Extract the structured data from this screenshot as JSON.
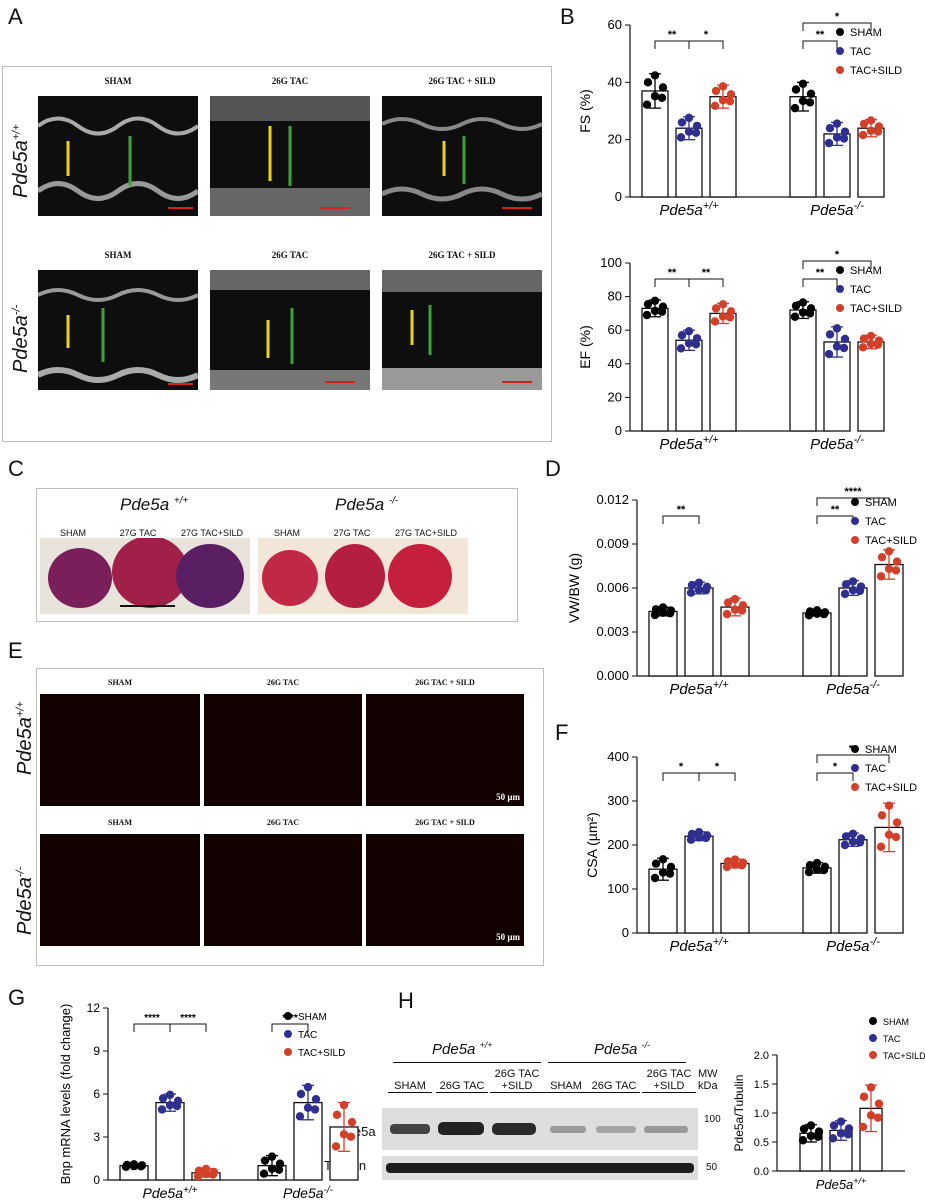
{
  "panels": {
    "A": "A",
    "B": "B",
    "C": "C",
    "D": "D",
    "E": "E",
    "F": "F",
    "G": "G",
    "H": "H"
  },
  "genotypes": {
    "wt": "Pde5a",
    "wt_sup": "+/+",
    "ko": "Pde5a",
    "ko_sup": "-/-"
  },
  "echo_headers": [
    "SHAM",
    "26G TAC",
    "26G TAC + SILD"
  ],
  "heart_headers": [
    "SHAM",
    "27G TAC",
    "27G TAC+SILD"
  ],
  "scale_bar": "50 µm",
  "legend": [
    "SHAM",
    "TAC",
    "TAC+SILD"
  ],
  "colors": {
    "sham": "#000000",
    "tac": "#2e2f8f",
    "sild": "#d2402a"
  },
  "blot": {
    "lanes": [
      "SHAM",
      "26G TAC",
      "26G TAC +SILD",
      "SHAM",
      "26G TAC",
      "26G TAC +SILD"
    ],
    "mw": "MW kDa",
    "rows": [
      "Pde5a",
      "Tubulin"
    ],
    "markers": [
      "100",
      "50"
    ]
  },
  "chart_data": [
    {
      "id": "B-FS",
      "type": "bar",
      "ylabel": "FS (%)",
      "ylim": [
        0,
        60
      ],
      "yticks": [
        "0",
        "20",
        "40",
        "60"
      ],
      "categories": [
        "Pde5a+/+",
        "Pde5a-/-"
      ],
      "series": [
        {
          "name": "SHAM",
          "values": [
            37,
            35
          ],
          "errors": [
            6,
            5
          ]
        },
        {
          "name": "TAC",
          "values": [
            24,
            22
          ],
          "errors": [
            4,
            4
          ]
        },
        {
          "name": "TAC+SILD",
          "values": [
            35,
            24
          ],
          "errors": [
            4,
            3
          ]
        }
      ],
      "significance": [
        {
          "group": 0,
          "from": 0,
          "to": 1,
          "label": "**"
        },
        {
          "group": 0,
          "from": 1,
          "to": 2,
          "label": "*"
        },
        {
          "group": 1,
          "from": 0,
          "to": 1,
          "label": "**"
        },
        {
          "group": 1,
          "from": 0,
          "to": 2,
          "label": "*"
        }
      ]
    },
    {
      "id": "B-EF",
      "type": "bar",
      "ylabel": "EF (%)",
      "ylim": [
        0,
        100
      ],
      "yticks": [
        "0",
        "20",
        "40",
        "60",
        "80",
        "100"
      ],
      "categories": [
        "Pde5a+/+",
        "Pde5a-/-"
      ],
      "series": [
        {
          "name": "SHAM",
          "values": [
            73,
            72
          ],
          "errors": [
            5,
            5
          ]
        },
        {
          "name": "TAC",
          "values": [
            54,
            53
          ],
          "errors": [
            6,
            9
          ]
        },
        {
          "name": "TAC+SILD",
          "values": [
            70,
            53
          ],
          "errors": [
            6,
            4
          ]
        }
      ],
      "significance": [
        {
          "group": 0,
          "from": 0,
          "to": 1,
          "label": "**"
        },
        {
          "group": 0,
          "from": 1,
          "to": 2,
          "label": "**"
        },
        {
          "group": 1,
          "from": 0,
          "to": 1,
          "label": "**"
        },
        {
          "group": 1,
          "from": 0,
          "to": 2,
          "label": "*"
        }
      ]
    },
    {
      "id": "D-VWBW",
      "type": "bar",
      "ylabel": "VW/BW (g)",
      "ylim": [
        0,
        0.012
      ],
      "yticks": [
        "0.000",
        "0.003",
        "0.006",
        "0.009",
        "0.012"
      ],
      "categories": [
        "Pde5a+/+",
        "Pde5a-/-"
      ],
      "series": [
        {
          "name": "SHAM",
          "values": [
            0.0044,
            0.0043
          ],
          "errors": [
            0.0003,
            0.0002
          ]
        },
        {
          "name": "TAC",
          "values": [
            0.006,
            0.006
          ],
          "errors": [
            0.0004,
            0.0005
          ]
        },
        {
          "name": "TAC+SILD",
          "values": [
            0.0047,
            0.0076
          ],
          "errors": [
            0.0006,
            0.001
          ]
        }
      ],
      "significance": [
        {
          "group": 0,
          "from": 0,
          "to": 1,
          "label": "**"
        },
        {
          "group": 1,
          "from": 0,
          "to": 1,
          "label": "**"
        },
        {
          "group": 1,
          "from": 0,
          "to": 2,
          "label": "****"
        }
      ]
    },
    {
      "id": "F-CSA",
      "type": "bar",
      "ylabel": "CSA (µm²)",
      "ylim": [
        0,
        400
      ],
      "yticks": [
        "0",
        "100",
        "200",
        "300",
        "400"
      ],
      "categories": [
        "Pde5a+/+",
        "Pde5a-/-"
      ],
      "series": [
        {
          "name": "SHAM",
          "values": [
            145,
            148
          ],
          "errors": [
            25,
            12
          ]
        },
        {
          "name": "TAC",
          "values": [
            220,
            212
          ],
          "errors": [
            10,
            15
          ]
        },
        {
          "name": "TAC+SILD",
          "values": [
            158,
            240
          ],
          "errors": [
            10,
            55
          ]
        }
      ],
      "significance": [
        {
          "group": 0,
          "from": 0,
          "to": 1,
          "label": "*"
        },
        {
          "group": 0,
          "from": 1,
          "to": 2,
          "label": "*"
        },
        {
          "group": 1,
          "from": 0,
          "to": 1,
          "label": "*"
        },
        {
          "group": 1,
          "from": 0,
          "to": 2,
          "label": "**"
        }
      ]
    },
    {
      "id": "G-Bnp",
      "type": "bar",
      "ylabel": "Bnp mRNA levels (fold change)",
      "ylim": [
        0,
        12
      ],
      "yticks": [
        "0",
        "3",
        "6",
        "9",
        "12"
      ],
      "categories": [
        "Pde5a+/+",
        "Pde5a-/-"
      ],
      "series": [
        {
          "name": "SHAM",
          "values": [
            1.0,
            1.0
          ],
          "errors": [
            0.1,
            0.7
          ]
        },
        {
          "name": "TAC",
          "values": [
            5.4,
            5.4
          ],
          "errors": [
            0.6,
            1.2
          ]
        },
        {
          "name": "TAC+SILD",
          "values": [
            0.5,
            3.7
          ],
          "errors": [
            0.3,
            1.7
          ]
        }
      ],
      "significance": [
        {
          "group": 0,
          "from": 0,
          "to": 1,
          "label": "****"
        },
        {
          "group": 0,
          "from": 1,
          "to": 2,
          "label": "****"
        },
        {
          "group": 1,
          "from": 0,
          "to": 1,
          "label": "****"
        }
      ]
    },
    {
      "id": "H-ratio",
      "type": "bar",
      "ylabel": "Pde5a/Tubulin",
      "ylim": [
        0,
        2.0
      ],
      "yticks": [
        "0.0",
        "0.5",
        "1.0",
        "1.5",
        "2.0"
      ],
      "categories": [
        "Pde5a+/+"
      ],
      "series": [
        {
          "name": "SHAM",
          "values": [
            0.65
          ],
          "errors": [
            0.15
          ]
        },
        {
          "name": "TAC",
          "values": [
            0.7
          ],
          "errors": [
            0.17
          ]
        },
        {
          "name": "TAC+SILD",
          "values": [
            1.08
          ],
          "errors": [
            0.4
          ]
        }
      ],
      "significance": []
    }
  ]
}
